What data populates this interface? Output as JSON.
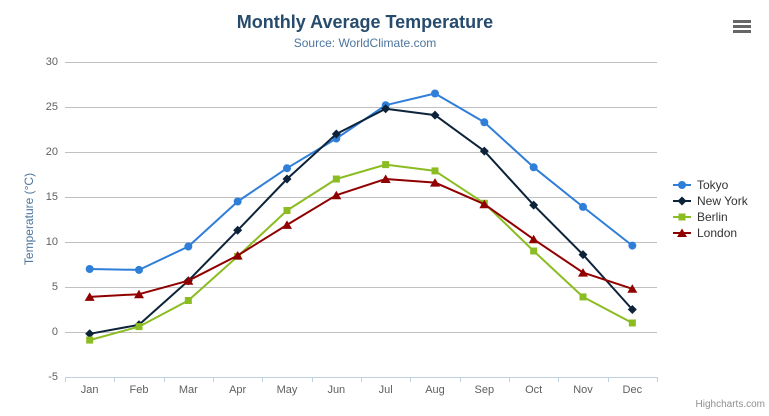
{
  "header": {
    "title": "Monthly Average Temperature",
    "subtitle": "Source: WorldClimate.com"
  },
  "credits": {
    "label": "Highcharts.com"
  },
  "export_menu": {
    "icon": "hamburger-icon"
  },
  "colors": {
    "title": "#274b6d",
    "subtitle": "#4d759e",
    "axis_title": "#4d759e",
    "tick_label": "#606060",
    "gridline": "#c0c0c0",
    "axis_line": "#c0d0e0",
    "legend_text": "#333333",
    "credits_text": "#909090",
    "menu_icon": "#666666"
  },
  "chart_data": {
    "type": "line",
    "title": "Monthly Average Temperature",
    "subtitle": "Source: WorldClimate.com",
    "xlabel": "",
    "ylabel": "Temperature (°C)",
    "ylim": [
      -5,
      30
    ],
    "ytick_interval": 5,
    "grid": true,
    "legend_position": "right-middle",
    "categories": [
      "Jan",
      "Feb",
      "Mar",
      "Apr",
      "May",
      "Jun",
      "Jul",
      "Aug",
      "Sep",
      "Oct",
      "Nov",
      "Dec"
    ],
    "series": [
      {
        "name": "Tokyo",
        "color": "#2f7ed8",
        "marker": "circle",
        "values": [
          7.0,
          6.9,
          9.5,
          14.5,
          18.2,
          21.5,
          25.2,
          26.5,
          23.3,
          18.3,
          13.9,
          9.6
        ]
      },
      {
        "name": "New York",
        "color": "#0d233a",
        "marker": "diamond",
        "values": [
          -0.2,
          0.8,
          5.7,
          11.3,
          17.0,
          22.0,
          24.8,
          24.1,
          20.1,
          14.1,
          8.6,
          2.5
        ]
      },
      {
        "name": "Berlin",
        "color": "#8bbc21",
        "marker": "square",
        "values": [
          -0.9,
          0.6,
          3.5,
          8.4,
          13.5,
          17.0,
          18.6,
          17.9,
          14.3,
          9.0,
          3.9,
          1.0
        ]
      },
      {
        "name": "London",
        "color": "#910000",
        "marker": "triangle",
        "values": [
          3.9,
          4.2,
          5.7,
          8.5,
          11.9,
          15.2,
          17.0,
          16.6,
          14.2,
          10.3,
          6.6,
          4.8
        ]
      }
    ]
  }
}
